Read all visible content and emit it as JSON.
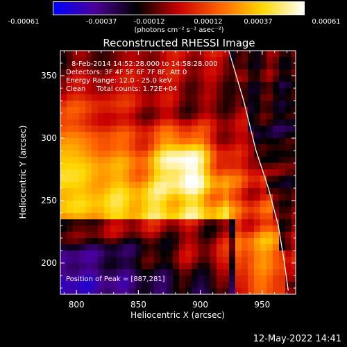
{
  "colorbar": {
    "tick_labels": [
      "-0.00061",
      "-0.00037",
      "-0.00012",
      "0.00012",
      "0.00037",
      "0.00061"
    ],
    "units": "(photons cm⁻² s⁻¹ asec⁻²)",
    "colormap": [
      "#0000ff",
      "#4b0096",
      "#000000",
      "#c80000",
      "#ff6400",
      "#ffd700",
      "#ffffff"
    ]
  },
  "chart_data": {
    "type": "heatmap",
    "title": "Reconstructed RHESSI Image",
    "xlabel": "Heliocentric X (arcsec)",
    "ylabel": "Heliocentric Y (arcsec)",
    "xlim": [
      787,
      977
    ],
    "ylim": [
      175,
      370
    ],
    "xticks": [
      800,
      850,
      900,
      950
    ],
    "yticks": [
      200,
      250,
      300,
      350
    ],
    "value_range": [
      -0.00061,
      0.00061
    ],
    "peak": [
      887,
      281
    ],
    "limb_curve": [
      [
        923,
        370
      ],
      [
        935,
        330
      ],
      [
        945,
        290
      ],
      [
        955,
        260
      ],
      [
        963,
        230
      ],
      [
        968,
        200
      ],
      [
        971,
        178
      ]
    ],
    "annotations": [
      "8-Feb-2014 14:52:28.000 to 14:58:28.000",
      "Detectors: 3F 4F 5F 6F 7F 8F, Att 0",
      "Energy Range: 12.0 - 25.0 keV",
      "Clean     Total counts: 1.72E+04"
    ],
    "peak_label": "Position of Peak = [887,281]"
  },
  "footer": {
    "timestamp": "12-May-2022 14:41"
  }
}
